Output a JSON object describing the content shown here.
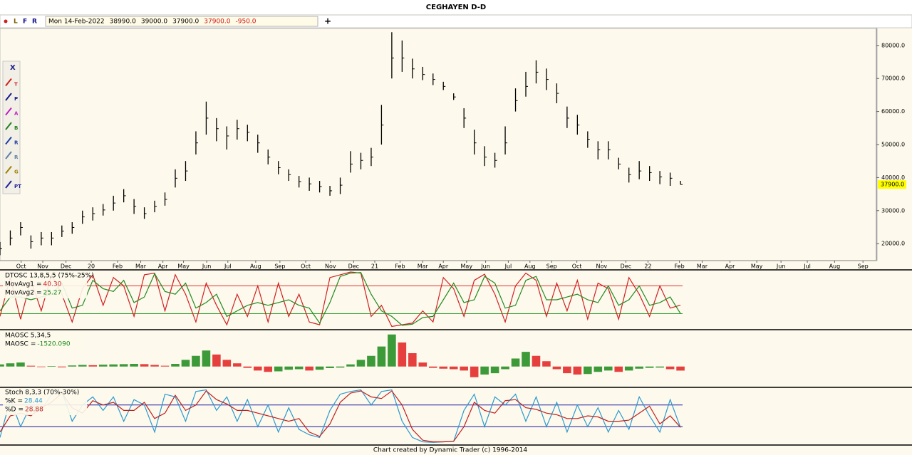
{
  "window": {
    "title": "CEGHAYEN D-D",
    "toolbar": [
      "L",
      "F",
      "R"
    ],
    "info": [
      {
        "text": "Mon 14-Feb-2022",
        "color": "#000000"
      },
      {
        "text": "38990.0",
        "color": "#000000"
      },
      {
        "text": "39000.0",
        "color": "#000000"
      },
      {
        "text": "37900.0",
        "color": "#000000"
      },
      {
        "text": "37900.0",
        "color": "#d01010"
      },
      {
        "text": "-950.0",
        "color": "#d01010"
      }
    ],
    "tools": [
      "X",
      "T",
      "P",
      "A",
      "B",
      "R",
      "R",
      "G",
      "PT"
    ],
    "footer": "Chart created by Dynamic Trader  (c) 1996-2014"
  },
  "chart_data": [
    {
      "type": "ohlc",
      "color": "#000000",
      "x": [
        0,
        2,
        4,
        6,
        8,
        10,
        12,
        14,
        16,
        18,
        20,
        22,
        24,
        26,
        28,
        30,
        32,
        34,
        36,
        38,
        40,
        42,
        44,
        46,
        48,
        50,
        52,
        54,
        56,
        58,
        60,
        62,
        64,
        66,
        68,
        70,
        72,
        74,
        76,
        78,
        80,
        82,
        84,
        86,
        88,
        90,
        92,
        94,
        96,
        98,
        100,
        102,
        104,
        106,
        108,
        110,
        112,
        114,
        116,
        118,
        120,
        122,
        124,
        126,
        128,
        130,
        132
      ],
      "high": [
        20500,
        24000,
        26500,
        22500,
        23500,
        23500,
        25500,
        26500,
        30000,
        31000,
        32000,
        34500,
        36500,
        33500,
        31000,
        33000,
        35500,
        42500,
        45000,
        54000,
        63000,
        58000,
        55500,
        57500,
        56000,
        53000,
        48500,
        45000,
        42500,
        40500,
        40000,
        39000,
        37500,
        40000,
        48000,
        47500,
        49000,
        62000,
        84000,
        81500,
        76000,
        73500,
        71500,
        69000,
        65500,
        61000,
        54500,
        49500,
        47500,
        55500,
        67000,
        72000,
        75500,
        73000,
        68500,
        61500,
        59000,
        54000,
        51000,
        51000,
        46000,
        43000,
        45000,
        43500,
        42000,
        41500,
        39000
      ],
      "low": [
        16500,
        19500,
        22500,
        18500,
        19500,
        19500,
        22000,
        23000,
        26000,
        27000,
        28500,
        30000,
        32500,
        29000,
        27500,
        29500,
        31500,
        37000,
        39000,
        47000,
        53000,
        51000,
        48500,
        51500,
        51000,
        47500,
        44000,
        41000,
        39000,
        37000,
        36000,
        35500,
        34500,
        35000,
        41500,
        42500,
        43500,
        50000,
        70000,
        72000,
        70000,
        69500,
        68000,
        66500,
        63500,
        55000,
        47000,
        43500,
        43000,
        47000,
        60000,
        64500,
        68500,
        66500,
        62500,
        55000,
        53000,
        49000,
        45500,
        45500,
        42500,
        38500,
        39500,
        39000,
        38000,
        37500,
        37900
      ],
      "close": [
        18500,
        21700,
        24900,
        20600,
        21700,
        21700,
        23800,
        24900,
        28100,
        29100,
        30200,
        32300,
        34500,
        31300,
        29100,
        31300,
        33400,
        39800,
        42000,
        50500,
        58000,
        54800,
        52600,
        54800,
        53700,
        50500,
        46200,
        43000,
        40900,
        38800,
        38100,
        37300,
        36000,
        37700,
        44100,
        45200,
        46200,
        55900,
        76200,
        76200,
        72900,
        71200,
        69700,
        67600,
        64400,
        58000,
        50500,
        46200,
        45200,
        50500,
        63300,
        67600,
        71900,
        69700,
        65500,
        58000,
        55900,
        51600,
        48400,
        48400,
        44100,
        40900,
        42000,
        41500,
        40200,
        39800,
        37900
      ],
      "xlim": [
        0,
        170
      ],
      "xticks": [
        {
          "value": 4.1,
          "label": "Oct"
        },
        {
          "value": 8.3,
          "label": "Nov"
        },
        {
          "value": 12.8,
          "label": "Dec"
        },
        {
          "value": 17.7,
          "label": "20"
        },
        {
          "value": 22.8,
          "label": "Feb"
        },
        {
          "value": 27.3,
          "label": "Mar"
        },
        {
          "value": 31.6,
          "label": "Apr"
        },
        {
          "value": 35.6,
          "label": "May"
        },
        {
          "value": 40.1,
          "label": "Jun"
        },
        {
          "value": 44.2,
          "label": "Jul"
        },
        {
          "value": 49.6,
          "label": "Aug"
        },
        {
          "value": 54.3,
          "label": "Sep"
        },
        {
          "value": 59.3,
          "label": "Oct"
        },
        {
          "value": 64.1,
          "label": "Nov"
        },
        {
          "value": 68.6,
          "label": "Dec"
        },
        {
          "value": 72.7,
          "label": "21"
        },
        {
          "value": 77.6,
          "label": "Feb"
        },
        {
          "value": 82.0,
          "label": "Mar"
        },
        {
          "value": 86.0,
          "label": "Apr"
        },
        {
          "value": 90.5,
          "label": "May"
        },
        {
          "value": 94.2,
          "label": "Jun"
        },
        {
          "value": 98.6,
          "label": "Jul"
        },
        {
          "value": 102.8,
          "label": "Aug"
        },
        {
          "value": 107.0,
          "label": "Sep"
        },
        {
          "value": 111.9,
          "label": "Oct"
        },
        {
          "value": 116.7,
          "label": "Nov"
        },
        {
          "value": 121.4,
          "label": "Dec"
        },
        {
          "value": 125.7,
          "label": "22"
        },
        {
          "value": 131.8,
          "label": "Feb"
        },
        {
          "value": 136.2,
          "label": "Mar"
        },
        {
          "value": 141.6,
          "label": "Apr"
        },
        {
          "value": 146.8,
          "label": "May"
        },
        {
          "value": 151.5,
          "label": "Jun"
        },
        {
          "value": 156.6,
          "label": "Jul"
        },
        {
          "value": 161.9,
          "label": "Aug"
        },
        {
          "value": 167.4,
          "label": "Sep"
        }
      ],
      "ylim": [
        15300,
        84700
      ],
      "yticks": [
        {
          "value": 20000,
          "label": "20000.0"
        },
        {
          "value": 30000,
          "label": "30000.0"
        },
        {
          "value": 40000,
          "label": "40000.0"
        },
        {
          "value": 50000,
          "label": "50000.0"
        },
        {
          "value": 60000,
          "label": "60000.0"
        },
        {
          "value": 70000,
          "label": "70000.0"
        },
        {
          "value": 80000,
          "label": "80000.0"
        }
      ],
      "last_label": {
        "value": 37900,
        "label": "37900.0"
      },
      "last_color": "#ffff00"
    },
    {
      "type": "line",
      "title": "DTOSC 13,8,5,5 (75%-25%)",
      "separator": "=",
      "ylim": [
        0,
        100
      ],
      "levels": [
        {
          "value": 75,
          "color": "#e03030"
        },
        {
          "value": 25,
          "color": "#30a030"
        }
      ],
      "series": [
        {
          "name": "MovAvg1",
          "color": "#d02020",
          "readout": {
            "value": 40.3,
            "label": "40.30"
          },
          "values": [
            20,
            90,
            15,
            85,
            30,
            95,
            60,
            10,
            70,
            95,
            40,
            90,
            75,
            20,
            95,
            98,
            30,
            95,
            60,
            10,
            80,
            40,
            5,
            60,
            20,
            75,
            10,
            80,
            20,
            60,
            10,
            5,
            90,
            95,
            100,
            98,
            20,
            40,
            2,
            5,
            8,
            30,
            10,
            90,
            70,
            20,
            85,
            96,
            60,
            10,
            75,
            98,
            85,
            20,
            80,
            30,
            85,
            15,
            80,
            70,
            15,
            90,
            60,
            20,
            75,
            35,
            40.3
          ]
        },
        {
          "name": "MovAvg2",
          "color": "#208a20",
          "readout": {
            "value": 25.27,
            "label": "25.27"
          },
          "values": [
            30,
            55,
            55,
            50,
            55,
            60,
            80,
            35,
            40,
            85,
            70,
            65,
            85,
            45,
            55,
            97,
            65,
            60,
            80,
            35,
            45,
            60,
            20,
            30,
            40,
            45,
            40,
            45,
            50,
            40,
            35,
            8,
            45,
            92,
            98,
            99,
            60,
            30,
            20,
            4,
            6,
            18,
            20,
            50,
            80,
            45,
            50,
            92,
            80,
            35,
            40,
            85,
            92,
            50,
            50,
            55,
            60,
            50,
            45,
            75,
            40,
            50,
            75,
            40,
            45,
            55,
            25.27
          ]
        }
      ]
    },
    {
      "type": "bar",
      "title": "MAOSC 5,34,5",
      "separator": "=",
      "ylim": [
        -7000,
        13000
      ],
      "up_color": "#1a8a1a",
      "down_color": "#e02020",
      "series": [
        {
          "name": "MAOSC",
          "color": "#1a8a1a",
          "readout": {
            "value": -1520.09,
            "label": "-1520.090"
          },
          "values": [
            800,
            1200,
            1500,
            300,
            -200,
            200,
            -300,
            400,
            600,
            500,
            700,
            800,
            900,
            1000,
            900,
            600,
            300,
            1000,
            2500,
            4000,
            6000,
            4500,
            2500,
            1200,
            -500,
            -1500,
            -2000,
            -1800,
            -1200,
            -1000,
            -1500,
            -1200,
            -600,
            -400,
            800,
            2500,
            4000,
            7500,
            12000,
            9000,
            5000,
            1500,
            -500,
            -800,
            -1000,
            -1500,
            -4000,
            -3000,
            -2500,
            -1000,
            3000,
            5500,
            4000,
            2000,
            -1000,
            -2500,
            -3000,
            -2800,
            -2000,
            -1500,
            -2000,
            -1500,
            -800,
            -500,
            -400,
            -1000,
            -1520.09
          ]
        }
      ]
    },
    {
      "type": "line",
      "title": "Stoch 8,3,3 (70%-30%)",
      "separator": "=",
      "ylim": [
        0,
        100
      ],
      "levels": [
        {
          "value": 70,
          "color": "#1a1aa0"
        },
        {
          "value": 30,
          "color": "#1a1aa0"
        }
      ],
      "series": [
        {
          "name": "%K",
          "color": "#2a9ad0",
          "readout": {
            "value": 28.44,
            "label": "28.44"
          },
          "values": [
            10,
            80,
            30,
            70,
            60,
            90,
            95,
            40,
            70,
            85,
            60,
            85,
            40,
            80,
            70,
            20,
            90,
            85,
            40,
            95,
            98,
            60,
            85,
            40,
            80,
            30,
            70,
            20,
            65,
            25,
            15,
            10,
            60,
            90,
            95,
            98,
            70,
            95,
            98,
            40,
            10,
            2,
            1,
            2,
            3,
            60,
            90,
            30,
            85,
            70,
            90,
            40,
            85,
            30,
            75,
            20,
            70,
            30,
            65,
            20,
            60,
            25,
            85,
            50,
            20,
            80,
            28.44
          ]
        },
        {
          "name": "%D",
          "color": "#c02020",
          "readout": {
            "value": 28.88,
            "label": "28.88"
          },
          "values": [
            20,
            50,
            55,
            50,
            65,
            75,
            92,
            65,
            55,
            78,
            70,
            75,
            60,
            60,
            75,
            45,
            55,
            88,
            60,
            70,
            96,
            80,
            72,
            60,
            60,
            55,
            50,
            45,
            40,
            45,
            20,
            12,
            35,
            75,
            92,
            96,
            85,
            82,
            96,
            70,
            25,
            5,
            2,
            2,
            3,
            30,
            75,
            60,
            55,
            78,
            80,
            65,
            62,
            55,
            52,
            45,
            45,
            50,
            48,
            40,
            40,
            42,
            55,
            68,
            35,
            50,
            28.88
          ]
        }
      ]
    }
  ]
}
